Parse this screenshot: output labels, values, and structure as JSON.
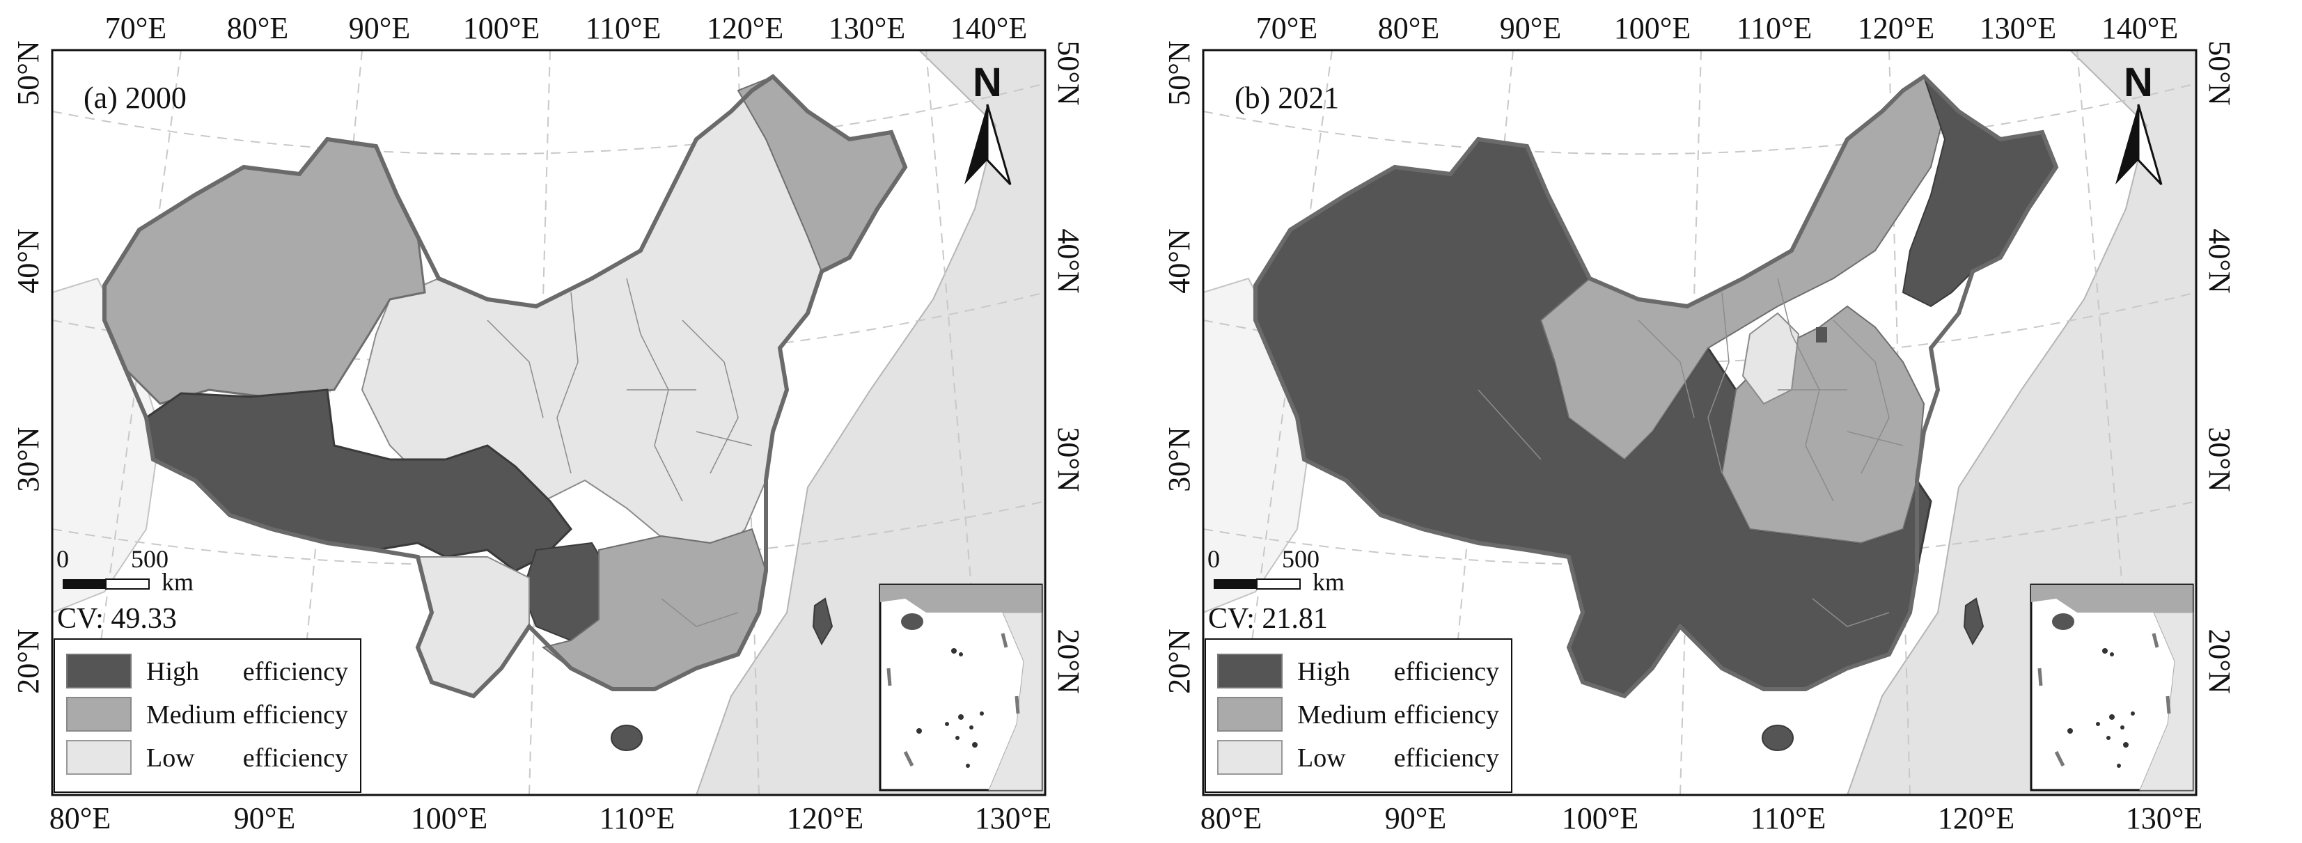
{
  "figure": {
    "panels": [
      {
        "id": "a",
        "label": "(a) 2000",
        "cv": "CV: 49.33",
        "top_ticks": [
          "70°E",
          "80°E",
          "90°E",
          "100°E",
          "110°E",
          "120°E",
          "130°E",
          "140°E"
        ],
        "bottom_ticks": [
          "80°E",
          "90°E",
          "100°E",
          "110°E",
          "120°E",
          "130°E"
        ],
        "left_ticks": [
          "50°N",
          "40°N",
          "30°N",
          "20°N"
        ],
        "right_ticks": [
          "50°N",
          "40°N",
          "30°N",
          "20°N"
        ],
        "scale": {
          "zero": "0",
          "distance": "500",
          "unit": "km"
        },
        "north": "N",
        "legend": [
          {
            "label": "High",
            "label2": "efficiency",
            "color": "#555555"
          },
          {
            "label": "Medium",
            "label2": "efficiency",
            "color": "#aaaaaa"
          },
          {
            "label": "Low",
            "label2": "efficiency",
            "color": "#e6e6e6"
          }
        ]
      },
      {
        "id": "b",
        "label": "(b) 2021",
        "cv": "CV: 21.81",
        "top_ticks": [
          "70°E",
          "80°E",
          "90°E",
          "100°E",
          "110°E",
          "120°E",
          "130°E",
          "140°E"
        ],
        "bottom_ticks": [
          "80°E",
          "90°E",
          "100°E",
          "110°E",
          "120°E",
          "130°E"
        ],
        "left_ticks": [
          "50°N",
          "40°N",
          "30°N",
          "20°N"
        ],
        "right_ticks": [
          "50°N",
          "40°N",
          "30°N",
          "20°N"
        ],
        "scale": {
          "zero": "0",
          "distance": "500",
          "unit": "km"
        },
        "north": "N",
        "legend": [
          {
            "label": "High",
            "label2": "efficiency",
            "color": "#555555"
          },
          {
            "label": "Medium",
            "label2": "efficiency",
            "color": "#aaaaaa"
          },
          {
            "label": "Low",
            "label2": "efficiency",
            "color": "#e6e6e6"
          }
        ]
      }
    ]
  }
}
